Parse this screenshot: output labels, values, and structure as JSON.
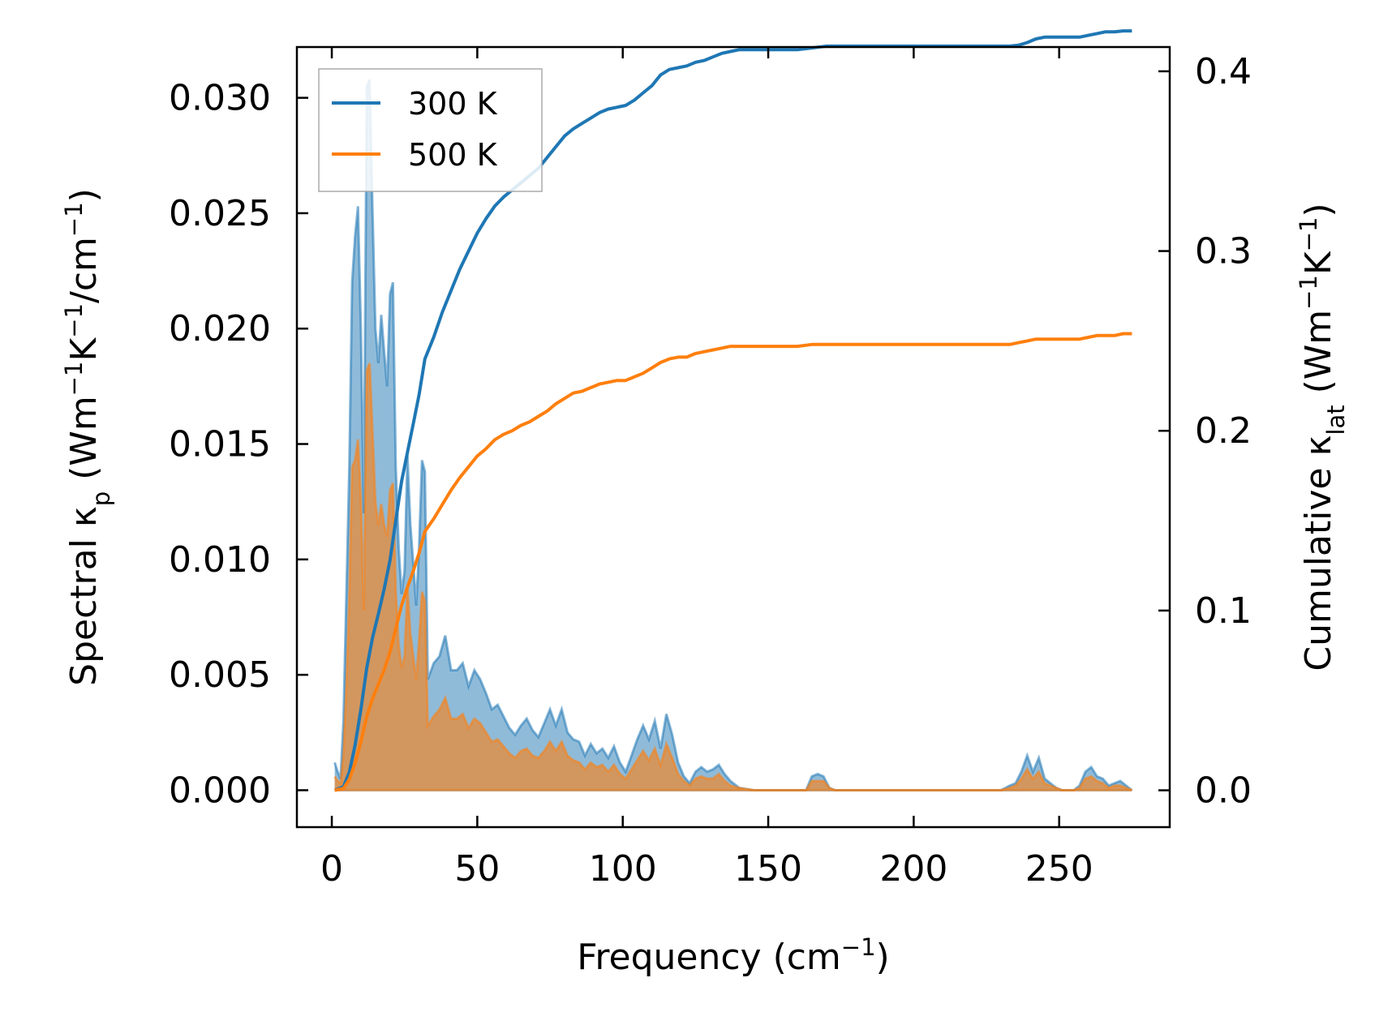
{
  "chart_data": {
    "type": "line",
    "title": "",
    "xlabel": "Frequency (cm",
    "xlabel_sup": "−1",
    "xlabel_tail": ")",
    "ylabel_left": {
      "prefix": "Spectral κ",
      "sub": "p",
      "mid1": " (Wm",
      "sup1": "−1",
      "mid2": "K",
      "sup2": "−1",
      "mid3": "/cm",
      "sup3": "−1",
      "tail": ")"
    },
    "ylabel_right": {
      "prefix": "Cumulative κ",
      "sub": "lat",
      "mid1": " (Wm",
      "sup1": "−1",
      "mid2": "K",
      "sup2": "−1",
      "tail": ")"
    },
    "xlim": [
      -12,
      288
    ],
    "ylim_left": [
      -0.0016,
      0.0322
    ],
    "ylim_right": [
      -0.0205,
      0.4135
    ],
    "x_ticks": [
      0,
      50,
      100,
      150,
      200,
      250
    ],
    "x_tick_labels": [
      "0",
      "50",
      "100",
      "150",
      "200",
      "250"
    ],
    "y_left_ticks": [
      0.0,
      0.005,
      0.01,
      0.015,
      0.02,
      0.025,
      0.03
    ],
    "y_left_tick_labels": [
      "0.000",
      "0.005",
      "0.010",
      "0.015",
      "0.020",
      "0.025",
      "0.030"
    ],
    "y_right_ticks": [
      0.0,
      0.1,
      0.2,
      0.3,
      0.4
    ],
    "y_right_tick_labels": [
      "0.0",
      "0.1",
      "0.2",
      "0.3",
      "0.4"
    ],
    "legend_position": "top-left",
    "colors": {
      "300K": "#1f77b4",
      "500K": "#ff7f0e"
    },
    "series": [
      {
        "name": "300 K",
        "spectral_x": [
          1,
          2,
          3,
          4,
          5,
          6,
          7,
          8,
          9,
          10,
          11,
          12,
          13,
          14,
          15,
          16,
          17,
          18,
          19,
          20,
          21,
          22,
          23,
          24,
          25,
          26,
          27,
          28,
          29,
          30,
          31,
          32,
          33,
          35,
          37,
          39,
          41,
          43,
          45,
          47,
          49,
          51,
          53,
          55,
          57,
          59,
          61,
          63,
          65,
          67,
          69,
          71,
          73,
          75,
          77,
          79,
          81,
          83,
          85,
          87,
          89,
          91,
          93,
          95,
          97,
          99,
          101,
          103,
          105,
          107,
          109,
          111,
          113,
          115,
          117,
          119,
          121,
          123,
          125,
          127,
          129,
          131,
          133,
          135,
          137,
          140,
          145,
          150,
          155,
          160,
          163,
          165,
          167,
          169,
          171,
          173,
          175,
          180,
          190,
          200,
          210,
          220,
          230,
          233,
          235,
          237,
          239,
          241,
          243,
          245,
          247,
          249,
          251,
          253,
          255,
          257,
          259,
          261,
          263,
          265,
          267,
          269,
          271,
          273,
          275
        ],
        "spectral_y": [
          0.0012,
          0.0008,
          0.0005,
          0.003,
          0.0085,
          0.014,
          0.022,
          0.024,
          0.0253,
          0.02,
          0.012,
          0.0305,
          0.0308,
          0.025,
          0.02,
          0.0185,
          0.0206,
          0.019,
          0.0175,
          0.0215,
          0.022,
          0.014,
          0.0105,
          0.0085,
          0.0095,
          0.0145,
          0.0115,
          0.0098,
          0.008,
          0.0105,
          0.0143,
          0.0138,
          0.0048,
          0.0055,
          0.0058,
          0.0067,
          0.0052,
          0.0052,
          0.0055,
          0.0045,
          0.0052,
          0.0048,
          0.0042,
          0.0035,
          0.0037,
          0.0032,
          0.0027,
          0.0024,
          0.0028,
          0.0031,
          0.0026,
          0.0023,
          0.0029,
          0.0035,
          0.0028,
          0.0035,
          0.0025,
          0.0022,
          0.0021,
          0.0015,
          0.002,
          0.0016,
          0.0018,
          0.0014,
          0.0019,
          0.0012,
          0.0008,
          0.0015,
          0.0022,
          0.0028,
          0.0022,
          0.003,
          0.0018,
          0.0033,
          0.0024,
          0.0012,
          0.0006,
          0.0003,
          0.0008,
          0.001,
          0.0008,
          0.0009,
          0.0011,
          0.0007,
          0.0004,
          0.0001,
          0.0,
          0.0,
          0.0,
          0.0,
          0.0,
          0.0006,
          0.0007,
          0.0006,
          0.0001,
          0.0,
          0.0,
          0.0,
          0.0,
          0.0,
          0.0,
          0.0,
          0.0,
          0.0002,
          0.0003,
          0.0008,
          0.0015,
          0.0008,
          0.0014,
          0.0005,
          0.0003,
          0.0001,
          0.0,
          0.0,
          0.0,
          0.0002,
          0.0008,
          0.001,
          0.0006,
          0.0005,
          0.0002,
          0.0003,
          0.0004,
          0.0002,
          0.0
        ],
        "cumulative_x": [
          1,
          4,
          6,
          8,
          10,
          12,
          14,
          16,
          18,
          20,
          22,
          24,
          26,
          28,
          30,
          32,
          35,
          38,
          41,
          44,
          47,
          50,
          53,
          56,
          59,
          62,
          65,
          68,
          71,
          74,
          77,
          80,
          83,
          86,
          89,
          92,
          95,
          98,
          101,
          104,
          107,
          110,
          113,
          116,
          119,
          122,
          125,
          128,
          131,
          134,
          137,
          140,
          145,
          150,
          155,
          160,
          165,
          170,
          175,
          180,
          190,
          200,
          210,
          220,
          230,
          233,
          236,
          239,
          242,
          245,
          248,
          251,
          254,
          257,
          260,
          263,
          266,
          269,
          272,
          275
        ],
        "cumulative_y": [
          0.0,
          0.002,
          0.01,
          0.025,
          0.045,
          0.068,
          0.085,
          0.098,
          0.112,
          0.128,
          0.15,
          0.172,
          0.188,
          0.204,
          0.22,
          0.24,
          0.252,
          0.266,
          0.278,
          0.29,
          0.3,
          0.31,
          0.318,
          0.325,
          0.33,
          0.334,
          0.338,
          0.342,
          0.346,
          0.352,
          0.358,
          0.364,
          0.368,
          0.371,
          0.374,
          0.377,
          0.379,
          0.38,
          0.381,
          0.384,
          0.388,
          0.392,
          0.398,
          0.401,
          0.402,
          0.403,
          0.405,
          0.406,
          0.408,
          0.41,
          0.411,
          0.412,
          0.412,
          0.412,
          0.412,
          0.412,
          0.413,
          0.414,
          0.414,
          0.414,
          0.414,
          0.414,
          0.414,
          0.414,
          0.414,
          0.414,
          0.4145,
          0.416,
          0.418,
          0.419,
          0.419,
          0.419,
          0.419,
          0.419,
          0.42,
          0.421,
          0.422,
          0.422,
          0.4225,
          0.4225
        ]
      },
      {
        "name": "500 K",
        "spectral_x": [
          1,
          2,
          3,
          4,
          5,
          6,
          7,
          8,
          9,
          10,
          11,
          12,
          13,
          14,
          15,
          16,
          17,
          18,
          19,
          20,
          21,
          22,
          23,
          24,
          25,
          26,
          27,
          28,
          29,
          30,
          31,
          32,
          33,
          35,
          37,
          39,
          41,
          43,
          45,
          47,
          49,
          51,
          53,
          55,
          57,
          59,
          61,
          63,
          65,
          67,
          69,
          71,
          73,
          75,
          77,
          79,
          81,
          83,
          85,
          87,
          89,
          91,
          93,
          95,
          97,
          99,
          101,
          103,
          105,
          107,
          109,
          111,
          113,
          115,
          117,
          119,
          121,
          123,
          125,
          127,
          129,
          131,
          133,
          135,
          137,
          140,
          145,
          150,
          155,
          160,
          163,
          165,
          167,
          169,
          171,
          173,
          175,
          180,
          190,
          200,
          210,
          220,
          230,
          233,
          235,
          237,
          239,
          241,
          243,
          245,
          247,
          249,
          251,
          253,
          255,
          257,
          259,
          261,
          263,
          265,
          267,
          269,
          271,
          273,
          275
        ],
        "spectral_y": [
          0.0006,
          0.0004,
          0.0003,
          0.0015,
          0.0045,
          0.0085,
          0.014,
          0.0143,
          0.0152,
          0.0126,
          0.0078,
          0.0182,
          0.0185,
          0.0155,
          0.0125,
          0.0115,
          0.0124,
          0.0115,
          0.011,
          0.013,
          0.0133,
          0.0086,
          0.0063,
          0.0053,
          0.0058,
          0.0088,
          0.0068,
          0.0058,
          0.0048,
          0.0065,
          0.0086,
          0.0082,
          0.0028,
          0.0032,
          0.0035,
          0.004,
          0.0031,
          0.0031,
          0.0033,
          0.0027,
          0.0031,
          0.0029,
          0.0025,
          0.0021,
          0.0022,
          0.0019,
          0.0016,
          0.0014,
          0.0017,
          0.0018,
          0.0015,
          0.0014,
          0.0017,
          0.0021,
          0.0017,
          0.0021,
          0.0015,
          0.0013,
          0.0012,
          0.0009,
          0.0012,
          0.001,
          0.0011,
          0.0008,
          0.0011,
          0.0007,
          0.0005,
          0.0009,
          0.0013,
          0.0017,
          0.0013,
          0.0018,
          0.0011,
          0.002,
          0.0014,
          0.0007,
          0.0004,
          0.0002,
          0.0005,
          0.0006,
          0.0005,
          0.0005,
          0.0007,
          0.0004,
          0.0002,
          0.0001,
          0.0,
          0.0,
          0.0,
          0.0,
          0.0,
          0.0004,
          0.0004,
          0.0004,
          0.0001,
          0.0,
          0.0,
          0.0,
          0.0,
          0.0,
          0.0,
          0.0,
          0.0,
          0.0001,
          0.0002,
          0.0005,
          0.0009,
          0.0005,
          0.0008,
          0.0003,
          0.0002,
          0.0001,
          0.0,
          0.0,
          0.0,
          0.0001,
          0.0005,
          0.0006,
          0.0004,
          0.0003,
          0.0001,
          0.0002,
          0.0002,
          0.0001,
          0.0
        ],
        "cumulative_x": [
          1,
          4,
          6,
          8,
          10,
          12,
          14,
          16,
          18,
          20,
          22,
          24,
          26,
          28,
          30,
          32,
          35,
          38,
          41,
          44,
          47,
          50,
          53,
          56,
          59,
          62,
          65,
          68,
          71,
          74,
          77,
          80,
          83,
          86,
          89,
          92,
          95,
          98,
          101,
          104,
          107,
          110,
          113,
          116,
          119,
          122,
          125,
          128,
          131,
          134,
          137,
          140,
          145,
          150,
          155,
          160,
          165,
          170,
          175,
          180,
          190,
          200,
          210,
          220,
          230,
          233,
          236,
          239,
          242,
          245,
          248,
          251,
          254,
          257,
          260,
          263,
          266,
          269,
          272,
          275
        ],
        "cumulative_y": [
          0.0,
          0.001,
          0.006,
          0.015,
          0.027,
          0.041,
          0.051,
          0.059,
          0.067,
          0.077,
          0.09,
          0.103,
          0.113,
          0.122,
          0.132,
          0.144,
          0.151,
          0.159,
          0.167,
          0.174,
          0.18,
          0.186,
          0.19,
          0.195,
          0.198,
          0.2,
          0.203,
          0.205,
          0.208,
          0.211,
          0.215,
          0.218,
          0.221,
          0.222,
          0.224,
          0.226,
          0.227,
          0.228,
          0.228,
          0.23,
          0.232,
          0.235,
          0.238,
          0.24,
          0.241,
          0.241,
          0.243,
          0.244,
          0.245,
          0.246,
          0.247,
          0.247,
          0.247,
          0.247,
          0.247,
          0.247,
          0.248,
          0.248,
          0.248,
          0.248,
          0.248,
          0.248,
          0.248,
          0.248,
          0.248,
          0.248,
          0.249,
          0.25,
          0.251,
          0.251,
          0.251,
          0.251,
          0.251,
          0.251,
          0.252,
          0.253,
          0.253,
          0.253,
          0.254,
          0.254
        ]
      }
    ]
  }
}
